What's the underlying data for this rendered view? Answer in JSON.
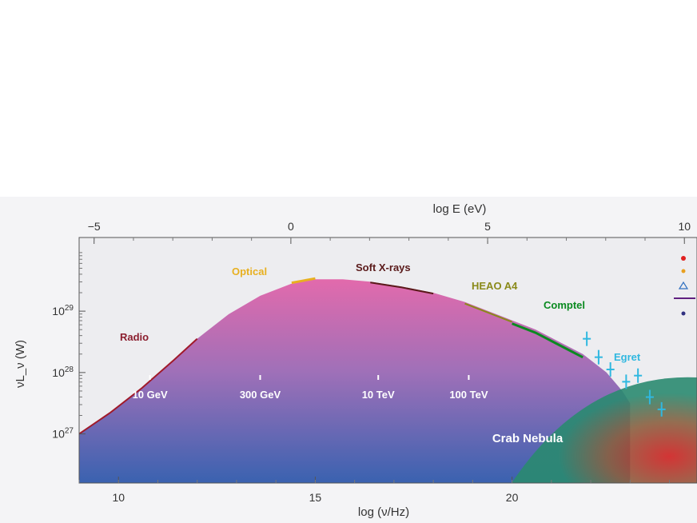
{
  "chart_data": {
    "type": "area",
    "title": "",
    "xlabel": "log (ν/Hz)",
    "ylabel": "νL_ν (W)",
    "top_xlabel": "log E (eV)",
    "xlim": [
      9,
      24.7
    ],
    "ylim_log10": [
      26.2,
      30.2
    ],
    "x_ticks": [
      {
        "value": 10,
        "label": "10"
      },
      {
        "value": 15,
        "label": "15"
      },
      {
        "value": 20,
        "label": "20"
      }
    ],
    "x_top_ticks": [
      {
        "value": -5,
        "label": "−5"
      },
      {
        "value": 0,
        "label": "0"
      },
      {
        "value": 5,
        "label": "5"
      },
      {
        "value": 10,
        "label": "10"
      }
    ],
    "y_ticks": [
      {
        "value": 27,
        "label": "10^27"
      },
      {
        "value": 28,
        "label": "10^28"
      },
      {
        "value": 29,
        "label": "10^29"
      }
    ],
    "series": [
      {
        "name": "Crab Nebula",
        "x": [
          9.0,
          9.8,
          10.6,
          11.4,
          12.0,
          12.8,
          13.6,
          14.4,
          15.0,
          15.7,
          16.4,
          17.2,
          18.0,
          18.8,
          19.4,
          20.0,
          20.6,
          21.2,
          21.8,
          22.4,
          22.8,
          23.0
        ],
        "y": [
          27.0,
          27.35,
          27.75,
          28.2,
          28.55,
          28.95,
          29.25,
          29.45,
          29.52,
          29.52,
          29.48,
          29.4,
          29.3,
          29.15,
          29.0,
          28.85,
          28.7,
          28.5,
          28.3,
          28.0,
          27.7,
          27.5
        ]
      }
    ],
    "band_labels": [
      {
        "text": "Radio",
        "color": "#8b1e2e"
      },
      {
        "text": "Optical",
        "color": "#e8b020"
      },
      {
        "text": "Soft X-rays",
        "color": "#5a1a1a"
      },
      {
        "text": "HEAO A4",
        "color": "#8a8a1a"
      },
      {
        "text": "Comptel",
        "color": "#0a8a20"
      },
      {
        "text": "Egret",
        "color": "#30b8e0"
      }
    ],
    "energy_markers": [
      {
        "text": "10 GeV",
        "x": 10.8
      },
      {
        "text": "300 GeV",
        "x": 13.6
      },
      {
        "text": "10 TeV",
        "x": 16.6
      },
      {
        "text": "100 TeV",
        "x": 18.9
      }
    ],
    "source_label": "Crab Nebula",
    "colors": {
      "area_top": "#e06aa8",
      "area_mid": "#9a70b8",
      "area_bottom": "#3a62b0",
      "radio_line": "#a01a2a",
      "optical": "#e8b020",
      "xray_line": "#5a1a1a",
      "heao": "#8a8a1a",
      "comptel": "#0a8a20",
      "egret": "#30b8e0",
      "legend_red": "#e02020",
      "legend_orange": "#e8a020",
      "legend_blue": "#3070c0",
      "legend_purple": "#602080",
      "legend_navy": "#303080"
    }
  }
}
